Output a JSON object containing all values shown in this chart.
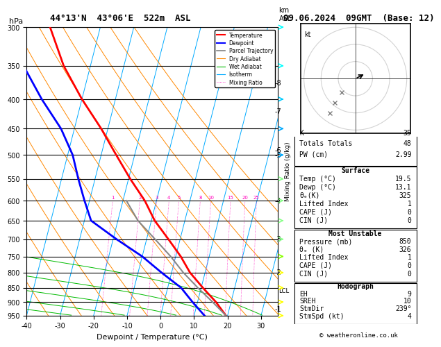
{
  "title_left": "44°13'N  43°06'E  522m  ASL",
  "title_right": "09.06.2024  09GMT  (Base: 12)",
  "xlabel": "Dewpoint / Temperature (°C)",
  "ylabel_left": "hPa",
  "p_levels": [
    300,
    350,
    400,
    450,
    500,
    550,
    600,
    650,
    700,
    750,
    800,
    850,
    900,
    950
  ],
  "p_min": 300,
  "p_max": 950,
  "t_min": -40,
  "t_max": 35,
  "skew_factor": 22.0,
  "temp_profile": {
    "pressure": [
      950,
      900,
      850,
      800,
      750,
      700,
      650,
      600,
      550,
      500,
      450,
      400,
      350,
      300
    ],
    "temperature": [
      19.5,
      15.5,
      10.5,
      5.5,
      1.5,
      -3.5,
      -9.0,
      -13.5,
      -19.5,
      -25.5,
      -32.0,
      -40.0,
      -48.0,
      -55.0
    ]
  },
  "dewpoint_profile": {
    "pressure": [
      950,
      900,
      850,
      800,
      750,
      700,
      650,
      600,
      550,
      500,
      450,
      400,
      350,
      300
    ],
    "temperature": [
      13.1,
      8.5,
      4.0,
      -3.0,
      -10.0,
      -19.0,
      -28.0,
      -31.5,
      -35.0,
      -38.5,
      -44.0,
      -52.0,
      -60.0,
      -66.0
    ]
  },
  "parcel_profile": {
    "pressure": [
      950,
      900,
      850,
      800,
      750,
      700,
      650,
      600
    ],
    "temperature": [
      19.5,
      14.5,
      9.0,
      3.5,
      -1.5,
      -7.5,
      -14.0,
      -19.0
    ]
  },
  "isotherms": [
    -40,
    -30,
    -20,
    -10,
    0,
    10,
    20,
    30,
    40
  ],
  "dry_adiabats_t0": [
    -30,
    -20,
    -10,
    0,
    10,
    20,
    30,
    40,
    50,
    60,
    70
  ],
  "wet_adiabats_t0": [
    -10,
    0,
    10,
    20,
    30,
    40
  ],
  "mixing_ratios": [
    1,
    2,
    3,
    4,
    5,
    8,
    10,
    15,
    20,
    25
  ],
  "mixing_ratio_label_p": 600,
  "km_ticks": {
    "1": 925,
    "2": 800,
    "3": 700,
    "4": 600,
    "5": 500,
    "6": 490,
    "7": 420,
    "8": 375
  },
  "lcl_pressure": 860,
  "wind_p_levels": [
    300,
    350,
    400,
    450,
    500,
    550,
    600,
    650,
    700,
    750,
    800,
    850,
    900,
    950
  ],
  "wind_colors": [
    "#00ffff",
    "#00ffff",
    "#00ccff",
    "#00aaff",
    "#00aaff",
    "#88ff88",
    "#88ff88",
    "#88ff88",
    "#88ff88",
    "#88ff00",
    "#ffff00",
    "#ffff00",
    "#ffff00",
    "#ffff00"
  ],
  "colors": {
    "isotherm": "#00aaff",
    "dry_adiabat": "#ff8800",
    "wet_adiabat": "#00bb00",
    "mixing_ratio": "#ff00bb",
    "temperature": "#ff0000",
    "dewpoint": "#0000ff",
    "parcel": "#888888"
  },
  "info_panel": {
    "K": 35,
    "Totals_Totals": 48,
    "PW_cm": 2.99,
    "Surface_Temp": 19.5,
    "Surface_Dewp": 13.1,
    "Surface_theta_e": 325,
    "Surface_LI": 1,
    "Surface_CAPE": 0,
    "Surface_CIN": 0,
    "MU_Pressure": 850,
    "MU_theta_e": 326,
    "MU_LI": 1,
    "MU_CAPE": 0,
    "MU_CIN": 0,
    "EH": 9,
    "SREH": 10,
    "StmDir": 239,
    "StmSpd": 4
  },
  "copyright": "© weatheronline.co.uk"
}
